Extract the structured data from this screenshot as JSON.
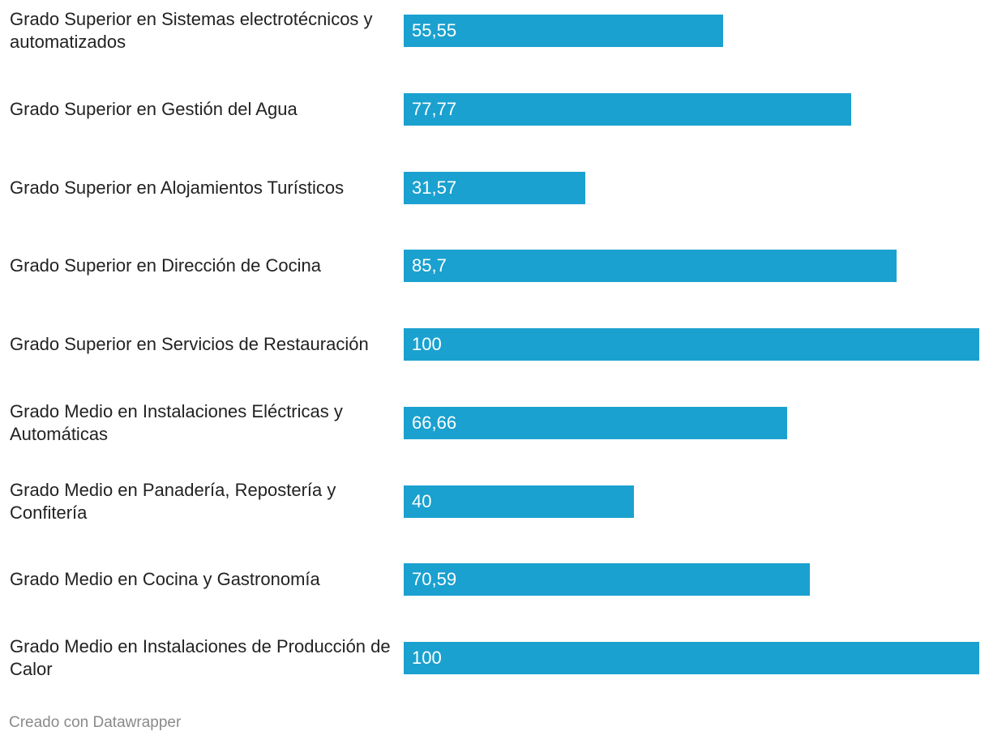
{
  "chart_data": {
    "type": "bar",
    "orientation": "horizontal",
    "categories": [
      "Grado Superior en Sistemas electrotécnicos y automatizados",
      "Grado Superior en Gestión del Agua",
      "Grado Superior en Alojamientos Turísticos",
      "Grado Superior en Dirección de Cocina",
      "Grado Superior en Servicios de Restauración",
      "Grado Medio en Instalaciones Eléctricas y Automáticas",
      "Grado Medio en Panadería, Repostería y Confitería",
      "Grado Medio en Cocina y Gastronomía",
      "Grado Medio en Instalaciones de Producción de Calor"
    ],
    "values": [
      55.55,
      77.77,
      31.57,
      85.7,
      100,
      66.66,
      40,
      70.59,
      100
    ],
    "value_labels": [
      "55,55",
      "77,77",
      "31,57",
      "85,7",
      "100",
      "66,66",
      "40",
      "70,59",
      "100"
    ],
    "xlim": [
      0,
      100
    ],
    "grid": false,
    "bar_color": "#1aa1cf"
  },
  "footer": {
    "credit": "Creado con Datawrapper"
  }
}
